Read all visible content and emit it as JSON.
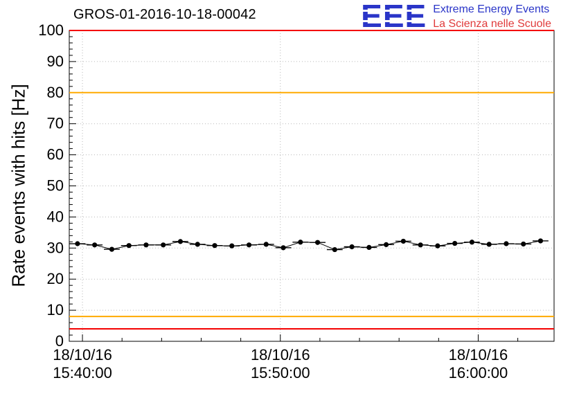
{
  "logo": {
    "acronym": "EEE",
    "tagline_line1": "Extreme Energy Events",
    "tagline_line2": "La Scienza nelle Scuole",
    "acronym_color": "#2a35c8",
    "line1_color": "#2a35c8",
    "line2_color": "#e03a3a"
  },
  "chart_data": {
    "type": "scatter",
    "title": "GROS-01-2016-10-18-00042",
    "ylabel": "Rate events with hits [Hz]",
    "xlabel": "",
    "ylim": [
      0,
      100
    ],
    "y_ticks": [
      0,
      10,
      20,
      30,
      40,
      50,
      60,
      70,
      80,
      90,
      100
    ],
    "grid": true,
    "grid_color": "#b8b8b8",
    "frame_color": "#000000",
    "x_time_domain_seconds": [
      -40,
      1430
    ],
    "x_ticks": [
      {
        "seconds": 0,
        "date": "18/10/16",
        "time": "15:40:00"
      },
      {
        "seconds": 600,
        "date": "18/10/16",
        "time": "15:50:00"
      },
      {
        "seconds": 1200,
        "date": "18/10/16",
        "time": "16:00:00"
      }
    ],
    "x_minor_tick_step_seconds": 120,
    "y_minor_tick_step": 2,
    "reference_lines": [
      {
        "y": 100,
        "color": "#f40000",
        "name": "upper-alarm-line"
      },
      {
        "y": 80,
        "color": "#ffaa00",
        "name": "upper-warning-line"
      },
      {
        "y": 8,
        "color": "#ffaa00",
        "name": "lower-warning-line"
      },
      {
        "y": 4,
        "color": "#f40000",
        "name": "lower-alarm-line"
      }
    ],
    "series": [
      {
        "name": "rate-events-with-hits",
        "marker": "filled-circle",
        "color": "#000000",
        "x_error_half_width_seconds": 24,
        "points_t_seconds": [
          -15,
          37,
          89,
          141,
          193,
          245,
          297,
          349,
          401,
          453,
          505,
          557,
          609,
          661,
          713,
          765,
          817,
          869,
          921,
          973,
          1025,
          1077,
          1129,
          1181,
          1233,
          1285,
          1337,
          1389
        ],
        "points_hz": [
          31.4,
          31.0,
          29.6,
          30.8,
          31.0,
          31.0,
          32.1,
          31.2,
          30.8,
          30.7,
          31.0,
          31.2,
          30.1,
          31.9,
          31.8,
          29.5,
          30.4,
          30.2,
          31.1,
          32.2,
          31.0,
          30.7,
          31.5,
          31.9,
          31.2,
          31.4,
          31.3,
          32.3
        ]
      }
    ]
  }
}
